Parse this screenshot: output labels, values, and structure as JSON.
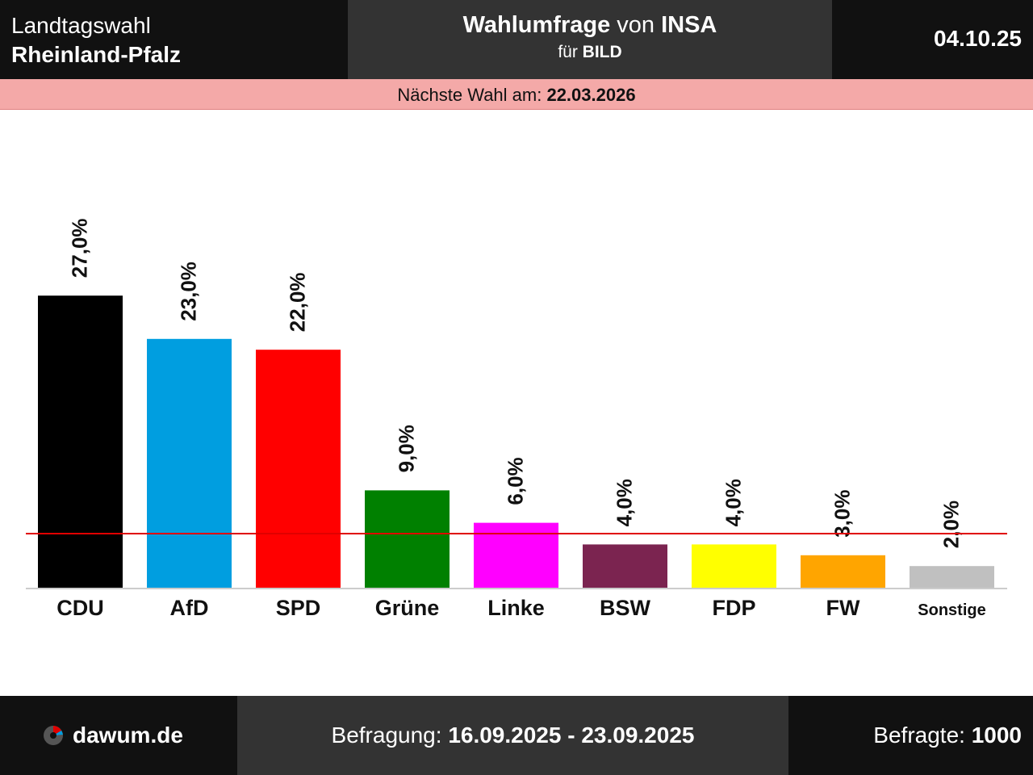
{
  "header": {
    "election_line1": "Landtagswahl",
    "election_line2": "Rheinland-Pfalz",
    "title_bold1": "Wahlumfrage",
    "title_mid": " von ",
    "title_bold2": "INSA",
    "sub_prefix": "für ",
    "sub_client": "BILD",
    "date": "04.10.25"
  },
  "subbar": {
    "label": "Nächste Wahl am: ",
    "date": "22.03.2026"
  },
  "footer": {
    "brand": "dawum.de",
    "survey_label": "Befragung: ",
    "survey_period": "16.09.2025 - 23.09.2025",
    "respondents_label": "Befragte: ",
    "respondents": "1000"
  },
  "colors": {
    "header_bg": "#111111",
    "header_mid_bg": "#333333",
    "subbar_bg": "#f4a9a8",
    "threshold_line": "#e00000"
  },
  "chart_data": {
    "type": "bar",
    "categories": [
      "CDU",
      "AfD",
      "SPD",
      "Grüne",
      "Linke",
      "BSW",
      "FDP",
      "FW",
      "Sonstige"
    ],
    "values": [
      27.0,
      23.0,
      22.0,
      9.0,
      6.0,
      4.0,
      4.0,
      3.0,
      2.0
    ],
    "value_labels": [
      "27,0%",
      "23,0%",
      "22,0%",
      "9,0%",
      "6,0%",
      "4,0%",
      "4,0%",
      "3,0%",
      "2,0%"
    ],
    "colors": [
      "#000000",
      "#009ee0",
      "#ff0000",
      "#008000",
      "#ff00ff",
      "#7b2450",
      "#ffff00",
      "#ffa500",
      "#c0c0c0"
    ],
    "threshold": 5,
    "ylim": [
      0,
      27
    ],
    "title": "",
    "xlabel": "",
    "ylabel": ""
  }
}
